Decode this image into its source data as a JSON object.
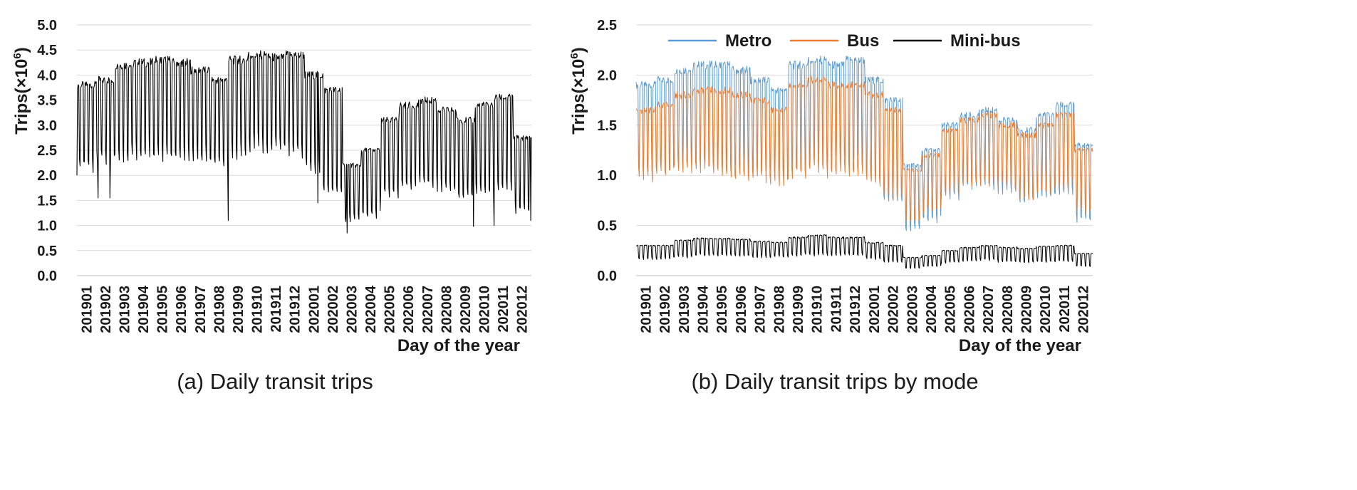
{
  "chart_data": [
    {
      "type": "line",
      "caption": "(a) Daily transit trips",
      "ylabel": "Trips(×10",
      "ylabel_sup": "6",
      "ylabel_tail": ")",
      "xlabel": "Day of the year",
      "ylim": [
        0,
        5
      ],
      "yticks": [
        "0.0",
        "0.5",
        "1.0",
        "1.5",
        "2.0",
        "2.5",
        "3.0",
        "3.5",
        "4.0",
        "4.5",
        "5.0"
      ],
      "ytick_values": [
        0,
        0.5,
        1.0,
        1.5,
        2.0,
        2.5,
        3.0,
        3.5,
        4.0,
        4.5,
        5.0
      ],
      "x_categories": [
        "201901",
        "201902",
        "201903",
        "201904",
        "201905",
        "201906",
        "201907",
        "201908",
        "201909",
        "201910",
        "201911",
        "201912",
        "202001",
        "202002",
        "202003",
        "202004",
        "202005",
        "202006",
        "202007",
        "202008",
        "202009",
        "202010",
        "202011",
        "202012"
      ],
      "grid": true,
      "series": [
        {
          "name": "Total",
          "color": "#000000",
          "monthly_weekday": [
            3.8,
            3.9,
            4.2,
            4.25,
            4.3,
            4.25,
            4.1,
            3.9,
            4.3,
            4.4,
            4.35,
            4.4,
            4.0,
            3.7,
            2.2,
            2.5,
            3.1,
            3.4,
            3.5,
            3.3,
            3.1,
            3.4,
            3.55,
            2.75
          ],
          "monthly_weekend": [
            2.35,
            2.5,
            2.55,
            2.6,
            2.55,
            2.5,
            2.5,
            2.4,
            2.6,
            2.75,
            2.7,
            2.65,
            2.3,
            1.8,
            1.2,
            1.3,
            1.75,
            1.9,
            1.95,
            1.85,
            1.7,
            1.8,
            1.9,
            1.4
          ],
          "holiday_dips": [
            {
              "day": 1,
              "value": 2.0
            },
            {
              "day": 35,
              "value": 1.55
            },
            {
              "day": 54,
              "value": 1.55
            },
            {
              "day": 244,
              "value": 1.1
            },
            {
              "day": 388,
              "value": 1.45
            },
            {
              "day": 435,
              "value": 0.85
            },
            {
              "day": 638,
              "value": 0.98
            },
            {
              "day": 671,
              "value": 1.0
            },
            {
              "day": 730,
              "value": 1.1
            }
          ]
        }
      ]
    },
    {
      "type": "line",
      "caption": "(b) Daily transit trips by mode",
      "ylabel": "Trips(×10",
      "ylabel_sup": "6",
      "ylabel_tail": ")",
      "xlabel": "Day of the year",
      "ylim": [
        0,
        2.5
      ],
      "yticks": [
        "0.0",
        "0.5",
        "1.0",
        "1.5",
        "2.0",
        "2.5"
      ],
      "ytick_values": [
        0,
        0.5,
        1.0,
        1.5,
        2.0,
        2.5
      ],
      "x_categories": [
        "201901",
        "201902",
        "201903",
        "201904",
        "201905",
        "201906",
        "201907",
        "201908",
        "201909",
        "201910",
        "201911",
        "201912",
        "202001",
        "202002",
        "202003",
        "202004",
        "202005",
        "202006",
        "202007",
        "202008",
        "202009",
        "202010",
        "202011",
        "202012"
      ],
      "grid": true,
      "legend_position": "top",
      "series": [
        {
          "name": "Metro",
          "color": "#5b9bd5",
          "monthly_weekday": [
            1.9,
            1.95,
            2.05,
            2.1,
            2.1,
            2.05,
            1.95,
            1.85,
            2.1,
            2.15,
            2.1,
            2.15,
            1.95,
            1.75,
            1.1,
            1.25,
            1.5,
            1.6,
            1.65,
            1.55,
            1.45,
            1.6,
            1.7,
            1.3
          ],
          "monthly_weekend": [
            1.1,
            1.15,
            1.2,
            1.2,
            1.2,
            1.15,
            1.15,
            1.1,
            1.2,
            1.3,
            1.25,
            1.25,
            1.05,
            0.8,
            0.5,
            0.6,
            0.85,
            0.95,
            0.95,
            0.9,
            0.8,
            0.85,
            0.9,
            0.6
          ]
        },
        {
          "name": "Bus",
          "color": "#ed7d31",
          "monthly_weekday": [
            1.65,
            1.7,
            1.8,
            1.85,
            1.85,
            1.8,
            1.75,
            1.65,
            1.9,
            1.95,
            1.9,
            1.9,
            1.8,
            1.65,
            1.05,
            1.2,
            1.45,
            1.55,
            1.6,
            1.5,
            1.4,
            1.5,
            1.6,
            1.25
          ],
          "monthly_weekend": [
            1.05,
            1.1,
            1.15,
            1.15,
            1.1,
            1.05,
            1.05,
            1.0,
            1.1,
            1.15,
            1.1,
            1.1,
            1.0,
            0.85,
            0.6,
            0.7,
            0.9,
            1.0,
            1.0,
            0.95,
            0.85,
            0.9,
            0.95,
            0.7
          ]
        },
        {
          "name": "Mini-bus",
          "color": "#000000",
          "monthly_weekday": [
            0.3,
            0.3,
            0.35,
            0.37,
            0.37,
            0.36,
            0.34,
            0.33,
            0.38,
            0.4,
            0.38,
            0.38,
            0.33,
            0.3,
            0.18,
            0.2,
            0.25,
            0.28,
            0.3,
            0.28,
            0.27,
            0.29,
            0.3,
            0.22
          ],
          "monthly_weekend": [
            0.18,
            0.18,
            0.2,
            0.22,
            0.22,
            0.21,
            0.2,
            0.2,
            0.22,
            0.22,
            0.22,
            0.22,
            0.18,
            0.15,
            0.08,
            0.1,
            0.14,
            0.16,
            0.17,
            0.15,
            0.14,
            0.15,
            0.16,
            0.1
          ]
        }
      ]
    }
  ]
}
